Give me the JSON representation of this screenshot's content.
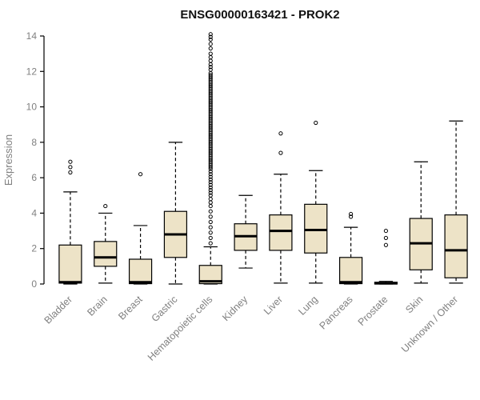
{
  "page": {
    "background": "#ffffff"
  },
  "chart_data": {
    "type": "boxplot",
    "title": "ENSG00000163421 - PROK2",
    "ylabel": "Expression",
    "ylim": [
      0,
      14
    ],
    "yticks": [
      0,
      2,
      4,
      6,
      8,
      10,
      12,
      14
    ],
    "grid": false,
    "legend": false,
    "box_fill": "#EDE3C7",
    "box_stroke": "#000000",
    "label_color": "#808080",
    "categories": [
      "Bladder",
      "Brain",
      "Breast",
      "Gastric",
      "Hematopoietic cells",
      "Kidney",
      "Liver",
      "Lung",
      "Pancreas",
      "Prostate",
      "Skin",
      "Unknown / Other"
    ],
    "boxes": [
      {
        "category": "Bladder",
        "whisker_low": 0,
        "q1": 0.05,
        "median": 0.1,
        "q3": 2.2,
        "whisker_high": 5.2,
        "outliers": [
          6.3,
          6.6,
          6.9
        ]
      },
      {
        "category": "Brain",
        "whisker_low": 0.05,
        "q1": 1.0,
        "median": 1.5,
        "q3": 2.4,
        "whisker_high": 4.0,
        "outliers": [
          4.4
        ]
      },
      {
        "category": "Breast",
        "whisker_low": 0,
        "q1": 0.02,
        "median": 0.1,
        "q3": 1.4,
        "whisker_high": 3.3,
        "outliers": [
          6.2
        ]
      },
      {
        "category": "Gastric",
        "whisker_low": 0,
        "q1": 1.5,
        "median": 2.8,
        "q3": 4.1,
        "whisker_high": 8.0,
        "outliers": []
      },
      {
        "category": "Hematopoietic cells",
        "whisker_low": 0,
        "q1": 0.02,
        "median": 0.15,
        "q3": 1.05,
        "whisker_high": 2.1,
        "outliers": [
          2.3,
          2.6,
          2.9,
          3.2,
          3.5,
          3.8,
          4.1,
          4.4,
          4.6,
          4.8,
          5.0,
          5.15,
          5.3,
          5.45,
          5.6,
          5.75,
          5.9,
          6.05,
          6.2,
          6.35,
          6.5,
          6.6,
          6.7,
          6.8,
          6.9,
          7.0,
          7.1,
          7.2,
          7.3,
          7.4,
          7.5,
          7.6,
          7.7,
          7.8,
          7.9,
          8.0,
          8.1,
          8.2,
          8.3,
          8.4,
          8.5,
          8.6,
          8.7,
          8.8,
          8.9,
          9.0,
          9.1,
          9.2,
          9.3,
          9.4,
          9.5,
          9.6,
          9.7,
          9.8,
          9.9,
          10.0,
          10.1,
          10.2,
          10.3,
          10.4,
          10.5,
          10.6,
          10.7,
          10.8,
          10.9,
          11.0,
          11.1,
          11.2,
          11.3,
          11.4,
          11.5,
          11.6,
          11.7,
          11.8,
          11.9,
          12.1,
          12.25,
          12.4,
          12.6,
          12.8,
          13.0,
          13.3,
          13.55,
          13.8,
          13.95,
          14.1
        ]
      },
      {
        "category": "Kidney",
        "whisker_low": 0.9,
        "q1": 1.9,
        "median": 2.7,
        "q3": 3.4,
        "whisker_high": 5.0,
        "outliers": []
      },
      {
        "category": "Liver",
        "whisker_low": 0.05,
        "q1": 1.9,
        "median": 3.0,
        "q3": 3.9,
        "whisker_high": 6.2,
        "outliers": [
          7.4,
          8.5
        ]
      },
      {
        "category": "Lung",
        "whisker_low": 0.05,
        "q1": 1.75,
        "median": 3.05,
        "q3": 4.5,
        "whisker_high": 6.4,
        "outliers": [
          9.1
        ]
      },
      {
        "category": "Pancreas",
        "whisker_low": 0,
        "q1": 0.02,
        "median": 0.1,
        "q3": 1.5,
        "whisker_high": 3.2,
        "outliers": [
          3.8,
          3.95
        ]
      },
      {
        "category": "Prostate",
        "whisker_low": 0,
        "q1": 0.0,
        "median": 0.04,
        "q3": 0.1,
        "whisker_high": 0.15,
        "outliers": [
          2.2,
          2.6,
          3.0
        ]
      },
      {
        "category": "Skin",
        "whisker_low": 0.05,
        "q1": 0.8,
        "median": 2.3,
        "q3": 3.7,
        "whisker_high": 6.9,
        "outliers": []
      },
      {
        "category": "Unknown / Other",
        "whisker_low": 0.05,
        "q1": 0.35,
        "median": 1.9,
        "q3": 3.9,
        "whisker_high": 9.2,
        "outliers": []
      }
    ]
  }
}
